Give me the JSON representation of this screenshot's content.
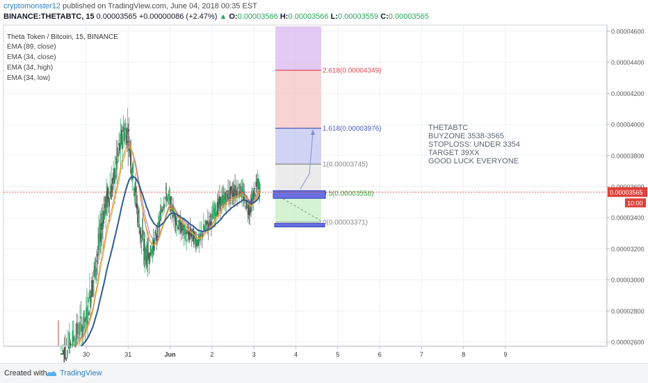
{
  "header": {
    "author": "cryptomonster12",
    "published": "published on TradingView.com, June 04, 2018 00:35 EST",
    "symbol": "BINANCE:THETABTC, 15",
    "last": "0.00003565",
    "change": "+0.00000086 (+2.47%)",
    "o_label": "O:",
    "o": "0.00003566",
    "h_label": "H:",
    "h": "0.00003566",
    "l_label": "L:",
    "l": "0.00003559",
    "c_label": "C:",
    "c": "0.00003565"
  },
  "legend": {
    "title": "Theta Token / Bitcoin, 15, BINANCE",
    "items": [
      "EMA (89, close)",
      "EMA (34, close)",
      "EMA (34, high)",
      "EMA (34, low)"
    ]
  },
  "annotation": [
    "THETABTC",
    "BUYZONE 3538-3565",
    "STOPLOSS: UNDER 3354",
    "TARGET 39XX",
    "GOOD LUCK EVERYONE"
  ],
  "price_tag": {
    "value": "0.00003565",
    "time": "10:00"
  },
  "footer": {
    "created": "Created with",
    "brand": "TradingView"
  },
  "colors": {
    "up": "#26a65b",
    "down": "#555555",
    "ema89": "#2e5b8a",
    "ema_close": "#e08a3c",
    "ema_high": "#a070c0",
    "ema_low": "#d9c040",
    "text": "#5c6570",
    "price_line": "#e0403a"
  },
  "chart_data": {
    "type": "candlestick",
    "y_axis_ticks": [
      "0.00004600",
      "0.00004400",
      "0.00004200",
      "0.00004000",
      "0.00003800",
      "0.00003600",
      "0.00003400",
      "0.00003200",
      "0.00003000",
      "0.00002800",
      "0.00002600"
    ],
    "x_axis_ticks": [
      "30",
      "31",
      "Jun",
      "2",
      "3",
      "4",
      "5",
      "6",
      "7",
      "8",
      "9"
    ],
    "ylim": [
      2.58e-05,
      4.6e-05
    ],
    "last_price": 3.565e-05,
    "fib_levels": [
      {
        "ratio": 2.618,
        "price": 4.349e-05,
        "label": "2.618(0.00004349)",
        "color": "#d8484f"
      },
      {
        "ratio": 1.618,
        "price": 3.976e-05,
        "label": "1.618(0.00003976)",
        "color": "#5060c0"
      },
      {
        "ratio": 1,
        "price": 3.745e-05,
        "label": "1(0.00003745)",
        "color": "#888888"
      },
      {
        "ratio": 0.5,
        "price": 3.558e-05,
        "label": "0.5(0.00003558)",
        "color": "#3aa040"
      },
      {
        "ratio": 0,
        "price": 3.371e-05,
        "label": "0(0.00003371)",
        "color": "#888888"
      }
    ],
    "buyzone": [
      3.538e-05,
      3.565e-05
    ],
    "stoploss": 3.354e-05,
    "path_start": [
      3.6,
      3.53e-05
    ],
    "path_points": [
      [
        -0.6,
        2.52e-05
      ],
      [
        -0.45,
        2.56e-05
      ],
      [
        -0.3,
        2.62e-05
      ],
      [
        -0.15,
        2.68e-05
      ],
      [
        0.0,
        2.75e-05
      ],
      [
        0.1,
        2.9e-05
      ],
      [
        0.2,
        3.05e-05
      ],
      [
        0.3,
        3.22e-05
      ],
      [
        0.4,
        3.4e-05
      ],
      [
        0.5,
        3.52e-05
      ],
      [
        0.6,
        3.58e-05
      ],
      [
        0.7,
        3.7e-05
      ],
      [
        0.8,
        3.85e-05
      ],
      [
        0.9,
        3.95e-05
      ],
      [
        1.0,
        3.95e-05
      ],
      [
        1.1,
        3.72e-05
      ],
      [
        1.2,
        3.5e-05
      ],
      [
        1.3,
        3.3e-05
      ],
      [
        1.4,
        3.18e-05
      ],
      [
        1.5,
        3.15e-05
      ],
      [
        1.6,
        3.22e-05
      ],
      [
        1.7,
        3.3e-05
      ],
      [
        1.8,
        3.45e-05
      ],
      [
        1.9,
        3.55e-05
      ],
      [
        2.0,
        3.5e-05
      ],
      [
        2.1,
        3.42e-05
      ],
      [
        2.2,
        3.35e-05
      ],
      [
        2.3,
        3.33e-05
      ],
      [
        2.4,
        3.28e-05
      ],
      [
        2.5,
        3.3e-05
      ],
      [
        2.6,
        3.26e-05
      ],
      [
        2.7,
        3.25e-05
      ],
      [
        2.8,
        3.32e-05
      ],
      [
        2.9,
        3.36e-05
      ],
      [
        3.0,
        3.4e-05
      ],
      [
        3.1,
        3.45e-05
      ],
      [
        3.2,
        3.5e-05
      ],
      [
        3.3,
        3.52e-05
      ],
      [
        3.4,
        3.55e-05
      ],
      [
        3.5,
        3.56e-05
      ],
      [
        3.6,
        3.58e-05
      ],
      [
        3.7,
        3.57e-05
      ],
      [
        3.8,
        3.5e-05
      ],
      [
        3.9,
        3.45e-05
      ],
      [
        4.0,
        3.55e-05
      ],
      [
        4.1,
        3.62e-05
      ],
      [
        4.15,
        3.57e-05
      ]
    ]
  }
}
